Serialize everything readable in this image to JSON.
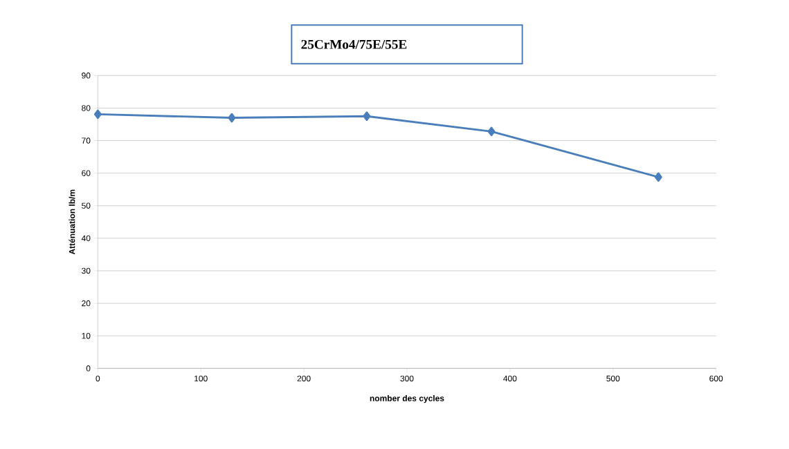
{
  "chart_data": {
    "type": "line",
    "title": "25CrMo4/75E/55E",
    "xlabel": "nomber des cycles",
    "ylabel": "Atténuation lb/m",
    "x": [
      0,
      130,
      261,
      382,
      544
    ],
    "series": [
      {
        "color": "#4a7ebb",
        "values": [
          78.1,
          77.0,
          77.5,
          72.8,
          58.8
        ]
      }
    ],
    "xlim": [
      0,
      600
    ],
    "xticks": [
      0,
      100,
      200,
      300,
      400,
      500,
      600
    ],
    "ylim": [
      0,
      90
    ],
    "yticks": [
      0,
      10,
      20,
      30,
      40,
      50,
      60,
      70,
      80,
      90
    ],
    "grid": "y",
    "marker": "diamond",
    "line_style": "solid"
  }
}
